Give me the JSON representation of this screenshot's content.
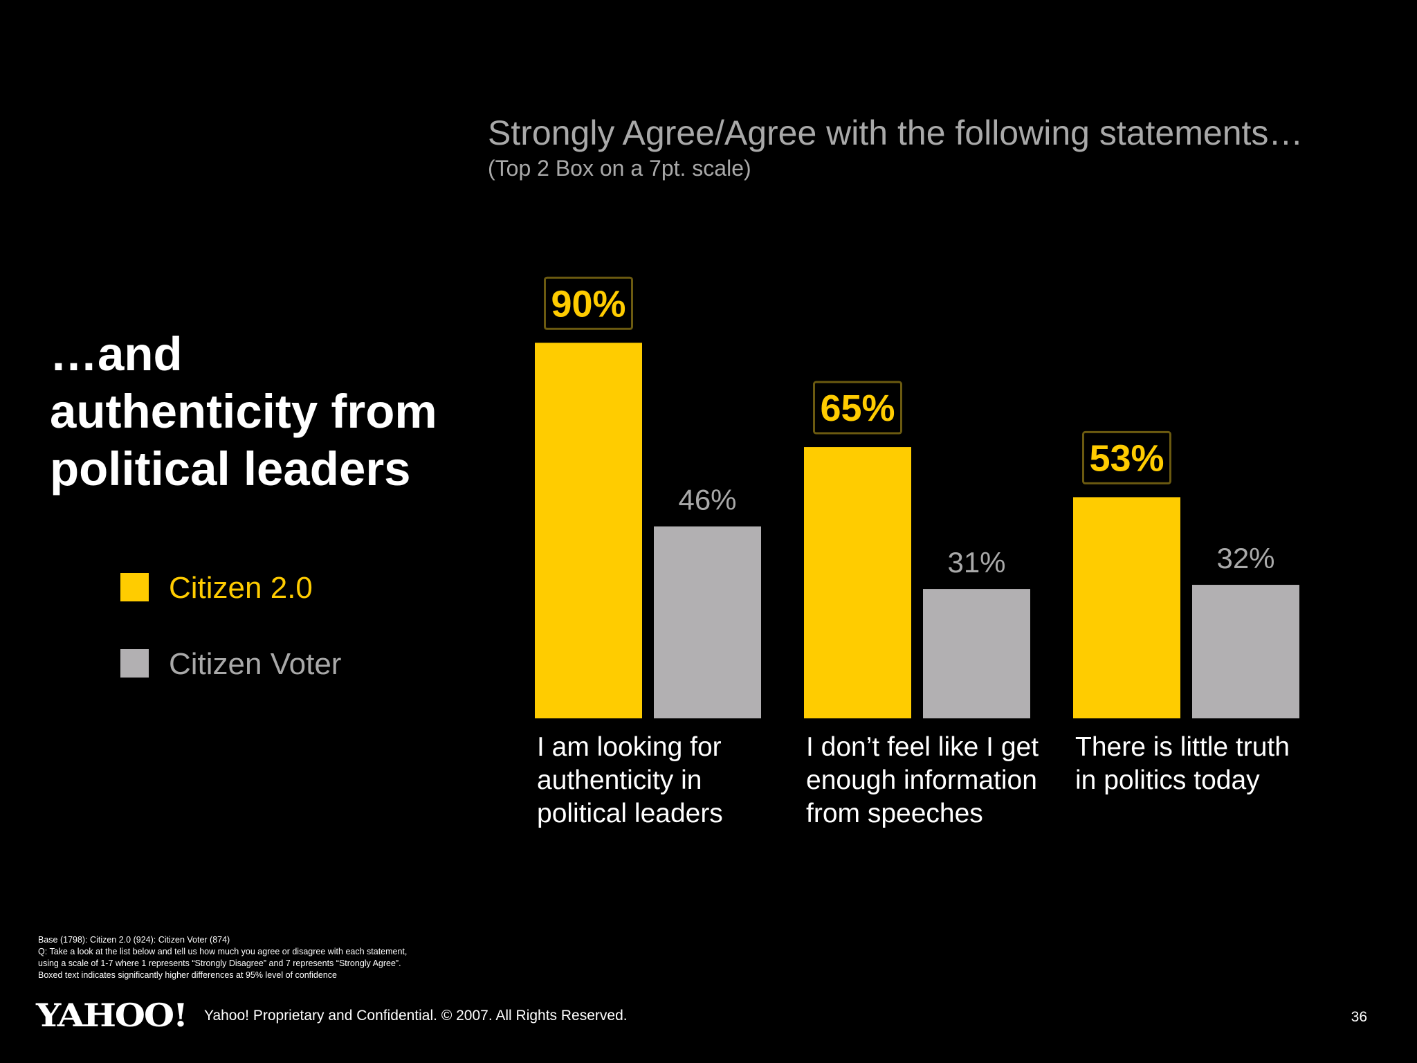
{
  "headline": {
    "lines": [
      "…and",
      "authenticity from",
      "political leaders"
    ]
  },
  "legend": [
    {
      "label": "Citizen 2.0",
      "color": "#ffcc00"
    },
    {
      "label": "Citizen Voter",
      "color": "#b2b0b2"
    }
  ],
  "chart_data": {
    "type": "bar",
    "title": "Strongly Agree/Agree with the following statements…",
    "subtitle": "(Top 2 Box on a 7pt. scale)",
    "categories": [
      "I am looking for authenticity in political leaders",
      "I don’t feel like I get enough information from speeches",
      "There is little truth in politics today"
    ],
    "category_label_lines": [
      [
        "I am looking for",
        "authenticity in",
        "political leaders"
      ],
      [
        "I don’t feel like I get",
        "enough information",
        "from speeches"
      ],
      [
        "There is little truth",
        "in politics today"
      ]
    ],
    "series": [
      {
        "name": "Citizen 2.0",
        "values": [
          90,
          65,
          53
        ],
        "labels": [
          "90%",
          "65%",
          "53%"
        ],
        "color": "#ffcc00",
        "boxed": [
          true,
          true,
          true
        ]
      },
      {
        "name": "Citizen Voter",
        "values": [
          46,
          31,
          32
        ],
        "labels": [
          "46%",
          "31%",
          "32%"
        ],
        "color": "#b2b0b2",
        "boxed": [
          false,
          false,
          false
        ]
      }
    ],
    "ylim": [
      0,
      100
    ],
    "grid": false,
    "legend_position": "left"
  },
  "footnote": {
    "lines": [
      "Base (1798): Citizen 2.0 (924): Citizen Voter (874)",
      "Q: Take a look at the list below and tell us how much you agree or disagree with each statement,",
      "using a scale of 1-7 where 1 represents “Strongly Disagree” and 7 represents “Strongly Agree”.",
      "Boxed text indicates significantly higher differences at 95% level of confidence"
    ]
  },
  "footer": {
    "logo_text": "YAHOO!",
    "copyright": "Yahoo! Proprietary and Confidential. © 2007. All Rights Reserved.",
    "page_number": "36"
  },
  "colors": {
    "background": "#000000",
    "accent": "#ffcc00",
    "secondary": "#b2b0b2",
    "muted_text": "#a9a9a9",
    "box_border": "#6b5a10"
  }
}
